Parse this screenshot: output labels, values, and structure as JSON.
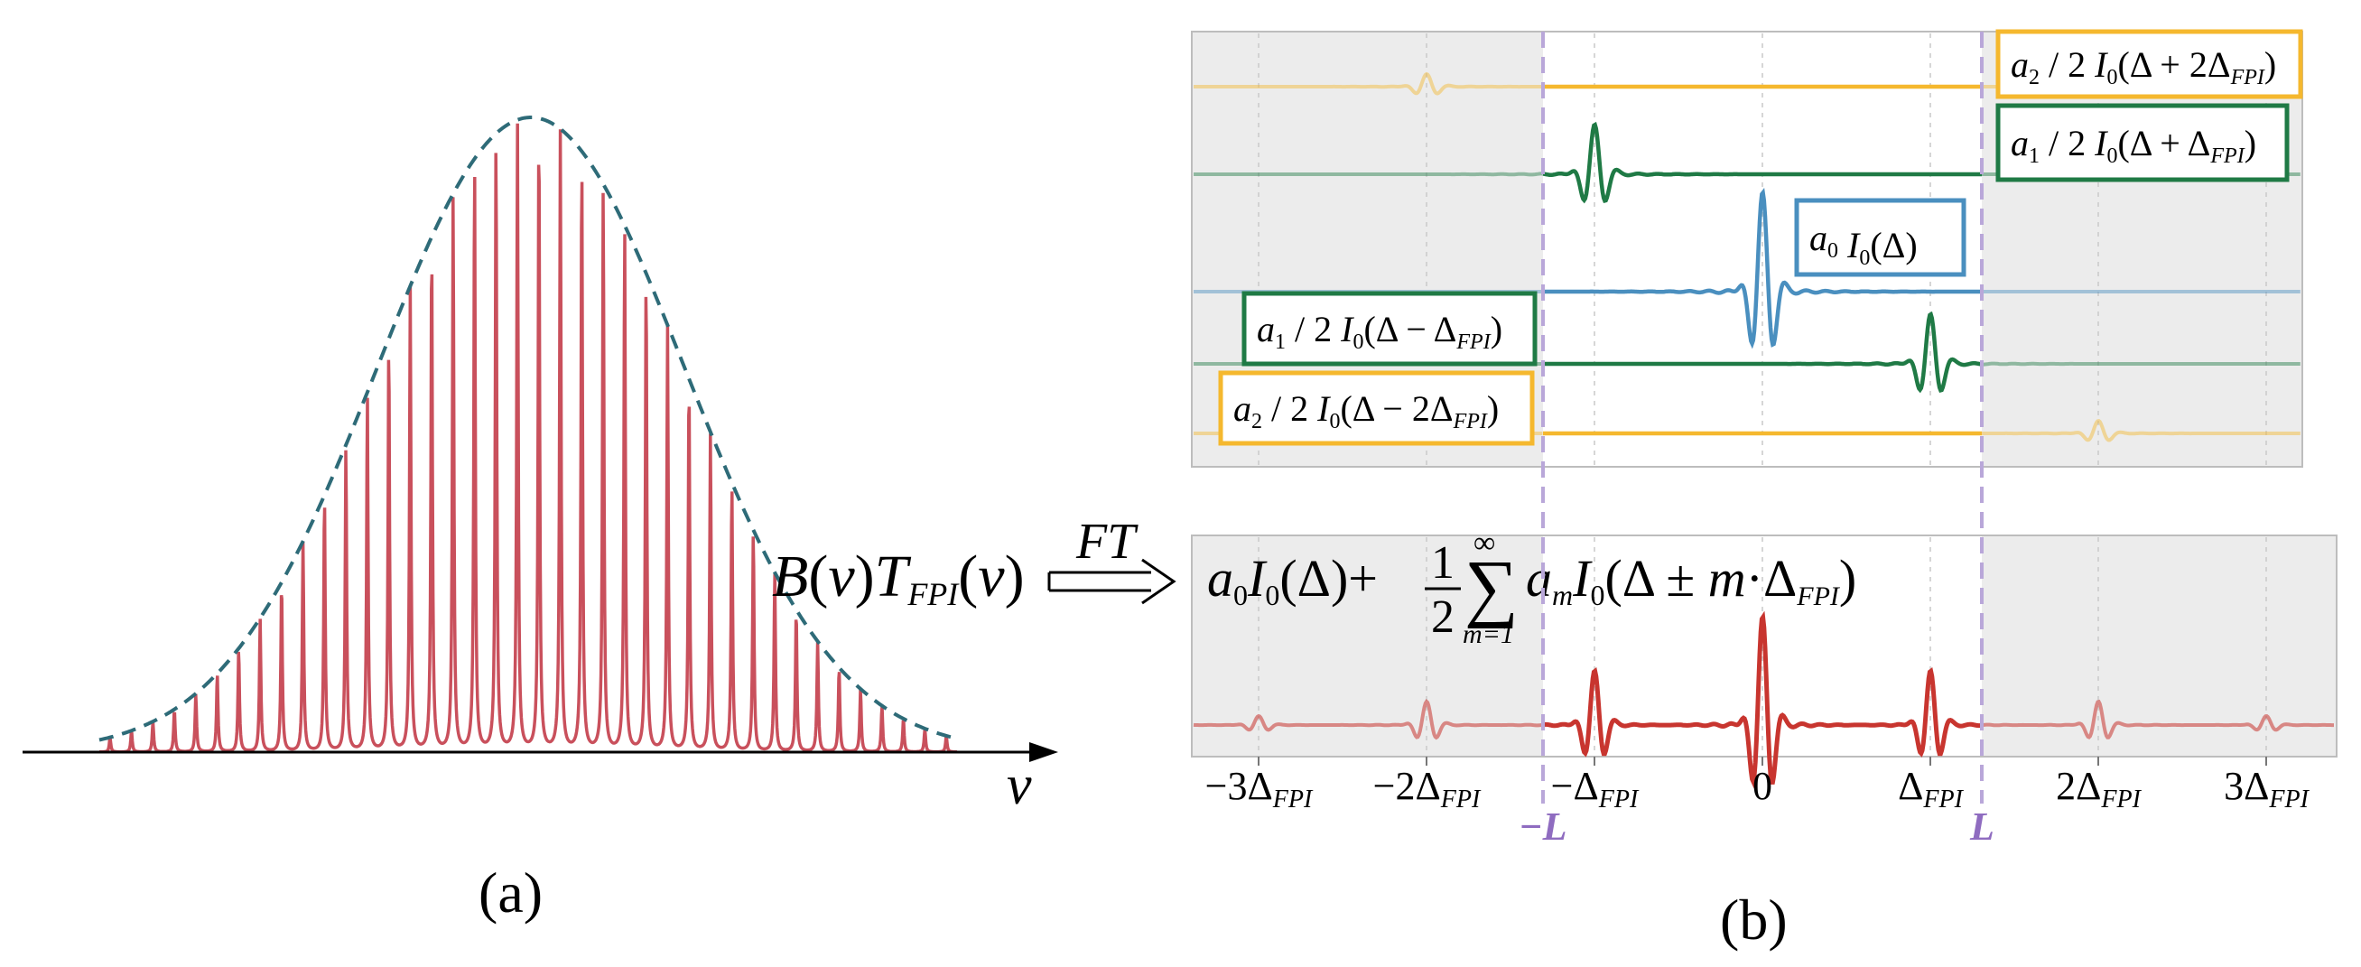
{
  "panel_a": {
    "label": "(a)",
    "axis_label": "ν",
    "peak_count": 40,
    "colors": {
      "peaks": "#c9505c",
      "envelope": "#2e6b78",
      "axis": "#000000"
    }
  },
  "transform": {
    "lhs": {
      "B": "B",
      "nu": "ν",
      "T": "T",
      "sub": "FPI"
    },
    "arrow_label": "FT",
    "rhs": {
      "a0": "a",
      "a0_sub": "0",
      "I0": "I",
      "I0_sub": "0",
      "delta": "Δ",
      "plus": "+",
      "frac_num": "1",
      "frac_den": "2",
      "sum_top": "∞",
      "sum_bottom": "m=1",
      "sigma": "∑",
      "am": "a",
      "am_sub": "m",
      "I0b": "I",
      "I0b_sub": "0",
      "pm": "±",
      "m": "m",
      "dot": "·",
      "delta_fpi": "Δ",
      "fpi_sub": "FPI"
    }
  },
  "panel_b": {
    "label": "(b)",
    "ticks": [
      {
        "coef": "−3Δ",
        "sub": "FPI"
      },
      {
        "coef": "−2Δ",
        "sub": "FPI"
      },
      {
        "coef": "−Δ",
        "sub": "FPI"
      },
      {
        "coef": "0",
        "sub": ""
      },
      {
        "coef": "Δ",
        "sub": "FPI"
      },
      {
        "coef": "2Δ",
        "sub": "FPI"
      },
      {
        "coef": "3Δ",
        "sub": "FPI"
      }
    ],
    "bounds": {
      "left": "−L",
      "right": "L"
    },
    "traces": [
      {
        "name": "a2-plus",
        "center_tick": -2,
        "color": "#f5b82e",
        "label": {
          "a": "a",
          "asub": "2",
          "mid": " / 2",
          "I": "I",
          "isub": "0",
          "arg": "(Δ + 2Δ",
          "argsub": "FPI",
          "close": ")"
        }
      },
      {
        "name": "a1-plus",
        "center_tick": -1,
        "color": "#1f7a45",
        "label": {
          "a": "a",
          "asub": "1",
          "mid": " / 2",
          "I": "I",
          "isub": "0",
          "arg": "(Δ + Δ",
          "argsub": "FPI",
          "close": ")"
        }
      },
      {
        "name": "a0",
        "center_tick": 0,
        "color": "#4a8fbf",
        "label": {
          "a": "a",
          "asub": "0",
          "mid": "",
          "I": "I",
          "isub": "0",
          "arg": "(Δ",
          "argsub": "",
          "close": ")"
        }
      },
      {
        "name": "a1-minus",
        "center_tick": 1,
        "color": "#1f7a45",
        "label": {
          "a": "a",
          "asub": "1",
          "mid": " / 2",
          "I": "I",
          "isub": "0",
          "arg": "(Δ − Δ",
          "argsub": "FPI",
          "close": ")"
        }
      },
      {
        "name": "a2-minus",
        "center_tick": 2,
        "color": "#f5b82e",
        "label": {
          "a": "a",
          "asub": "2",
          "mid": " / 2",
          "I": "I",
          "isub": "0",
          "arg": "(Δ − 2Δ",
          "argsub": "FPI",
          "close": ")"
        }
      }
    ],
    "sum_trace_color": "#c8352f",
    "bound_color": "#9b7fc4"
  }
}
